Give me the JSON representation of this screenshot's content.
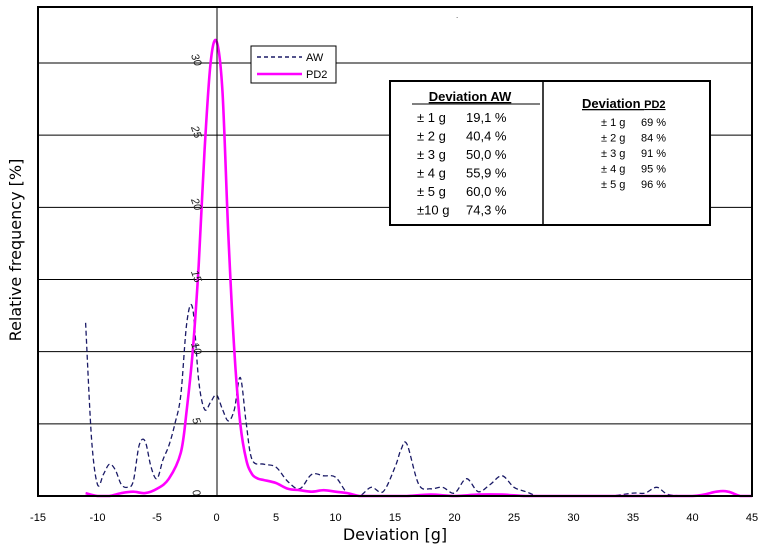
{
  "chart_data": {
    "type": "line",
    "title": "",
    "xlabel": "Deviation [g]",
    "ylabel": "Relative frequency [%]",
    "xlim": [
      -15,
      45
    ],
    "ylim": [
      0,
      30
    ],
    "xticks": [
      "-15",
      "-10",
      "-5",
      "0",
      "5",
      "10",
      "15",
      "20",
      "25",
      "30",
      "35",
      "40",
      "45"
    ],
    "yticks": [
      "0",
      "5",
      "10",
      "15",
      "20",
      "25",
      "30"
    ],
    "grid": "horizontal",
    "legend_position": "top-center",
    "series": [
      {
        "name": "AW",
        "color": "#1a1a66",
        "style": "dashed",
        "x": [
          -11,
          -10.5,
          -10,
          -9.5,
          -9,
          -8.5,
          -8,
          -7.5,
          -7,
          -6.5,
          -6,
          -5.5,
          -5,
          -4.5,
          -4,
          -3.5,
          -3,
          -2.5,
          -2,
          -1.5,
          -1,
          -0.5,
          0,
          0.5,
          1,
          1.5,
          2,
          2.5,
          3,
          4,
          5,
          6,
          7,
          8,
          9,
          10,
          11,
          12,
          13,
          14,
          15,
          15.5,
          16,
          17,
          18,
          19,
          20,
          21,
          22,
          23,
          24,
          25,
          26,
          27,
          28,
          30,
          33,
          35,
          36,
          37,
          38,
          40,
          42,
          45
        ],
        "values": [
          12.0,
          4.0,
          0.8,
          1.5,
          2.2,
          1.8,
          0.8,
          0.6,
          1.0,
          3.5,
          3.8,
          2.0,
          1.2,
          2.5,
          3.5,
          5.0,
          7.0,
          12.0,
          13.0,
          8.0,
          6.0,
          6.5,
          7.0,
          6.0,
          5.2,
          6.0,
          8.2,
          5.0,
          2.5,
          2.2,
          2.0,
          1.0,
          0.5,
          1.5,
          1.4,
          1.3,
          0.2,
          0.0,
          0.6,
          0.3,
          2.0,
          3.2,
          3.6,
          0.8,
          0.5,
          0.6,
          0.2,
          1.2,
          0.3,
          0.8,
          1.4,
          0.6,
          0.3,
          0.0,
          0.0,
          0.0,
          0.0,
          0.2,
          0.2,
          0.6,
          0.1,
          0.0,
          0.0,
          0.0
        ]
      },
      {
        "name": "PD2",
        "color": "#ff00ff",
        "style": "solid",
        "x": [
          -11,
          -10,
          -9,
          -8,
          -7,
          -6,
          -5,
          -4,
          -3,
          -2.5,
          -2,
          -1.5,
          -1,
          -0.5,
          0,
          0.5,
          1,
          1.5,
          2,
          2.5,
          3,
          3.5,
          4,
          5,
          6,
          7,
          8,
          9,
          10,
          11,
          12,
          13,
          14,
          15,
          16,
          18,
          20,
          22,
          24,
          26,
          28,
          30,
          35,
          40,
          42,
          43,
          44,
          45
        ],
        "values": [
          0.2,
          0.0,
          0.0,
          0.2,
          0.3,
          0.2,
          0.5,
          1.2,
          3.0,
          6.0,
          10.0,
          16.0,
          24.0,
          30.0,
          31.5,
          28.0,
          18.0,
          10.0,
          5.0,
          2.5,
          1.5,
          1.2,
          1.1,
          0.9,
          0.5,
          0.4,
          0.3,
          0.4,
          0.3,
          0.2,
          0.0,
          0.0,
          0.0,
          0.0,
          0.0,
          0.1,
          0.0,
          0.1,
          0.1,
          0.0,
          0.0,
          0.0,
          0.0,
          0.0,
          0.3,
          0.3,
          0.0,
          0.0
        ]
      }
    ],
    "table": {
      "aw_title": "Deviation  AW",
      "aw_rows": [
        {
          "range": "± 1 g",
          "value": "19,1 %"
        },
        {
          "range": "± 2 g",
          "value": "40,4 %"
        },
        {
          "range": "± 3 g",
          "value": "50,0 %"
        },
        {
          "range": "± 4 g",
          "value": "55,9 %"
        },
        {
          "range": "± 5 g",
          "value": "60,0 %"
        },
        {
          "range": "±10 g",
          "value": "74,3 %"
        }
      ],
      "pd2_title": "Deviation ",
      "pd2_title_suffix": "PD2",
      "pd2_rows": [
        {
          "range": "± 1 g",
          "value": "69 %"
        },
        {
          "range": "± 2 g",
          "value": "84 %"
        },
        {
          "range": "± 3 g",
          "value": "91 %"
        },
        {
          "range": "± 4 g",
          "value": "95 %"
        },
        {
          "range": "± 5 g",
          "value": "96 %"
        }
      ]
    }
  }
}
